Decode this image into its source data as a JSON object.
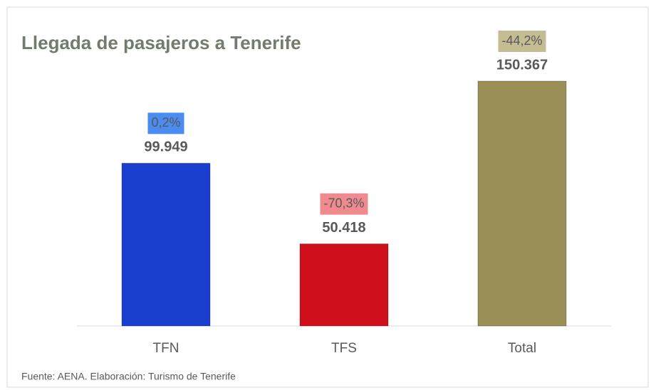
{
  "chart_data": {
    "type": "bar",
    "title": "Llegada de pasajeros a Tenerife",
    "categories": [
      "TFN",
      "TFS",
      "Total"
    ],
    "values": [
      99949,
      50418,
      150367
    ],
    "value_labels": [
      "99.949",
      "50.418",
      "150.367"
    ],
    "colors": [
      "#1a3fd0",
      "#d0101c",
      "#9a9058"
    ],
    "change_values": [
      0.2,
      -70.3,
      -44.2
    ],
    "change_labels": [
      "0,2%",
      "-70,3%",
      "-44,2%"
    ],
    "change_colors": [
      "#4a8cf0",
      "#f08a8e",
      "#c4bc92"
    ],
    "source": "Fuente: AENA. Elaboración: Turismo de Tenerife"
  }
}
